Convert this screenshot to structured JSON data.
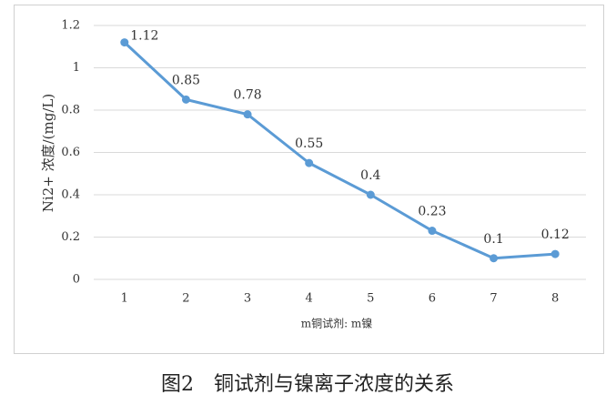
{
  "chart_data": {
    "type": "line",
    "y_label": "Ni2+ 浓度/(mg/L)",
    "x_label": "m铜试剂: m镍",
    "caption": "图2　铜试剂与镍离子浓度的关系",
    "categories": [
      "1",
      "2",
      "3",
      "4",
      "5",
      "6",
      "7",
      "8"
    ],
    "values": [
      1.12,
      0.85,
      0.78,
      0.55,
      0.4,
      0.23,
      0.1,
      0.12
    ],
    "color": "#5b9bd5",
    "ylim": [
      0,
      1.2
    ],
    "yticks": [
      0,
      0.2,
      0.4,
      0.6,
      0.8,
      1,
      1.2
    ],
    "grid": true
  }
}
